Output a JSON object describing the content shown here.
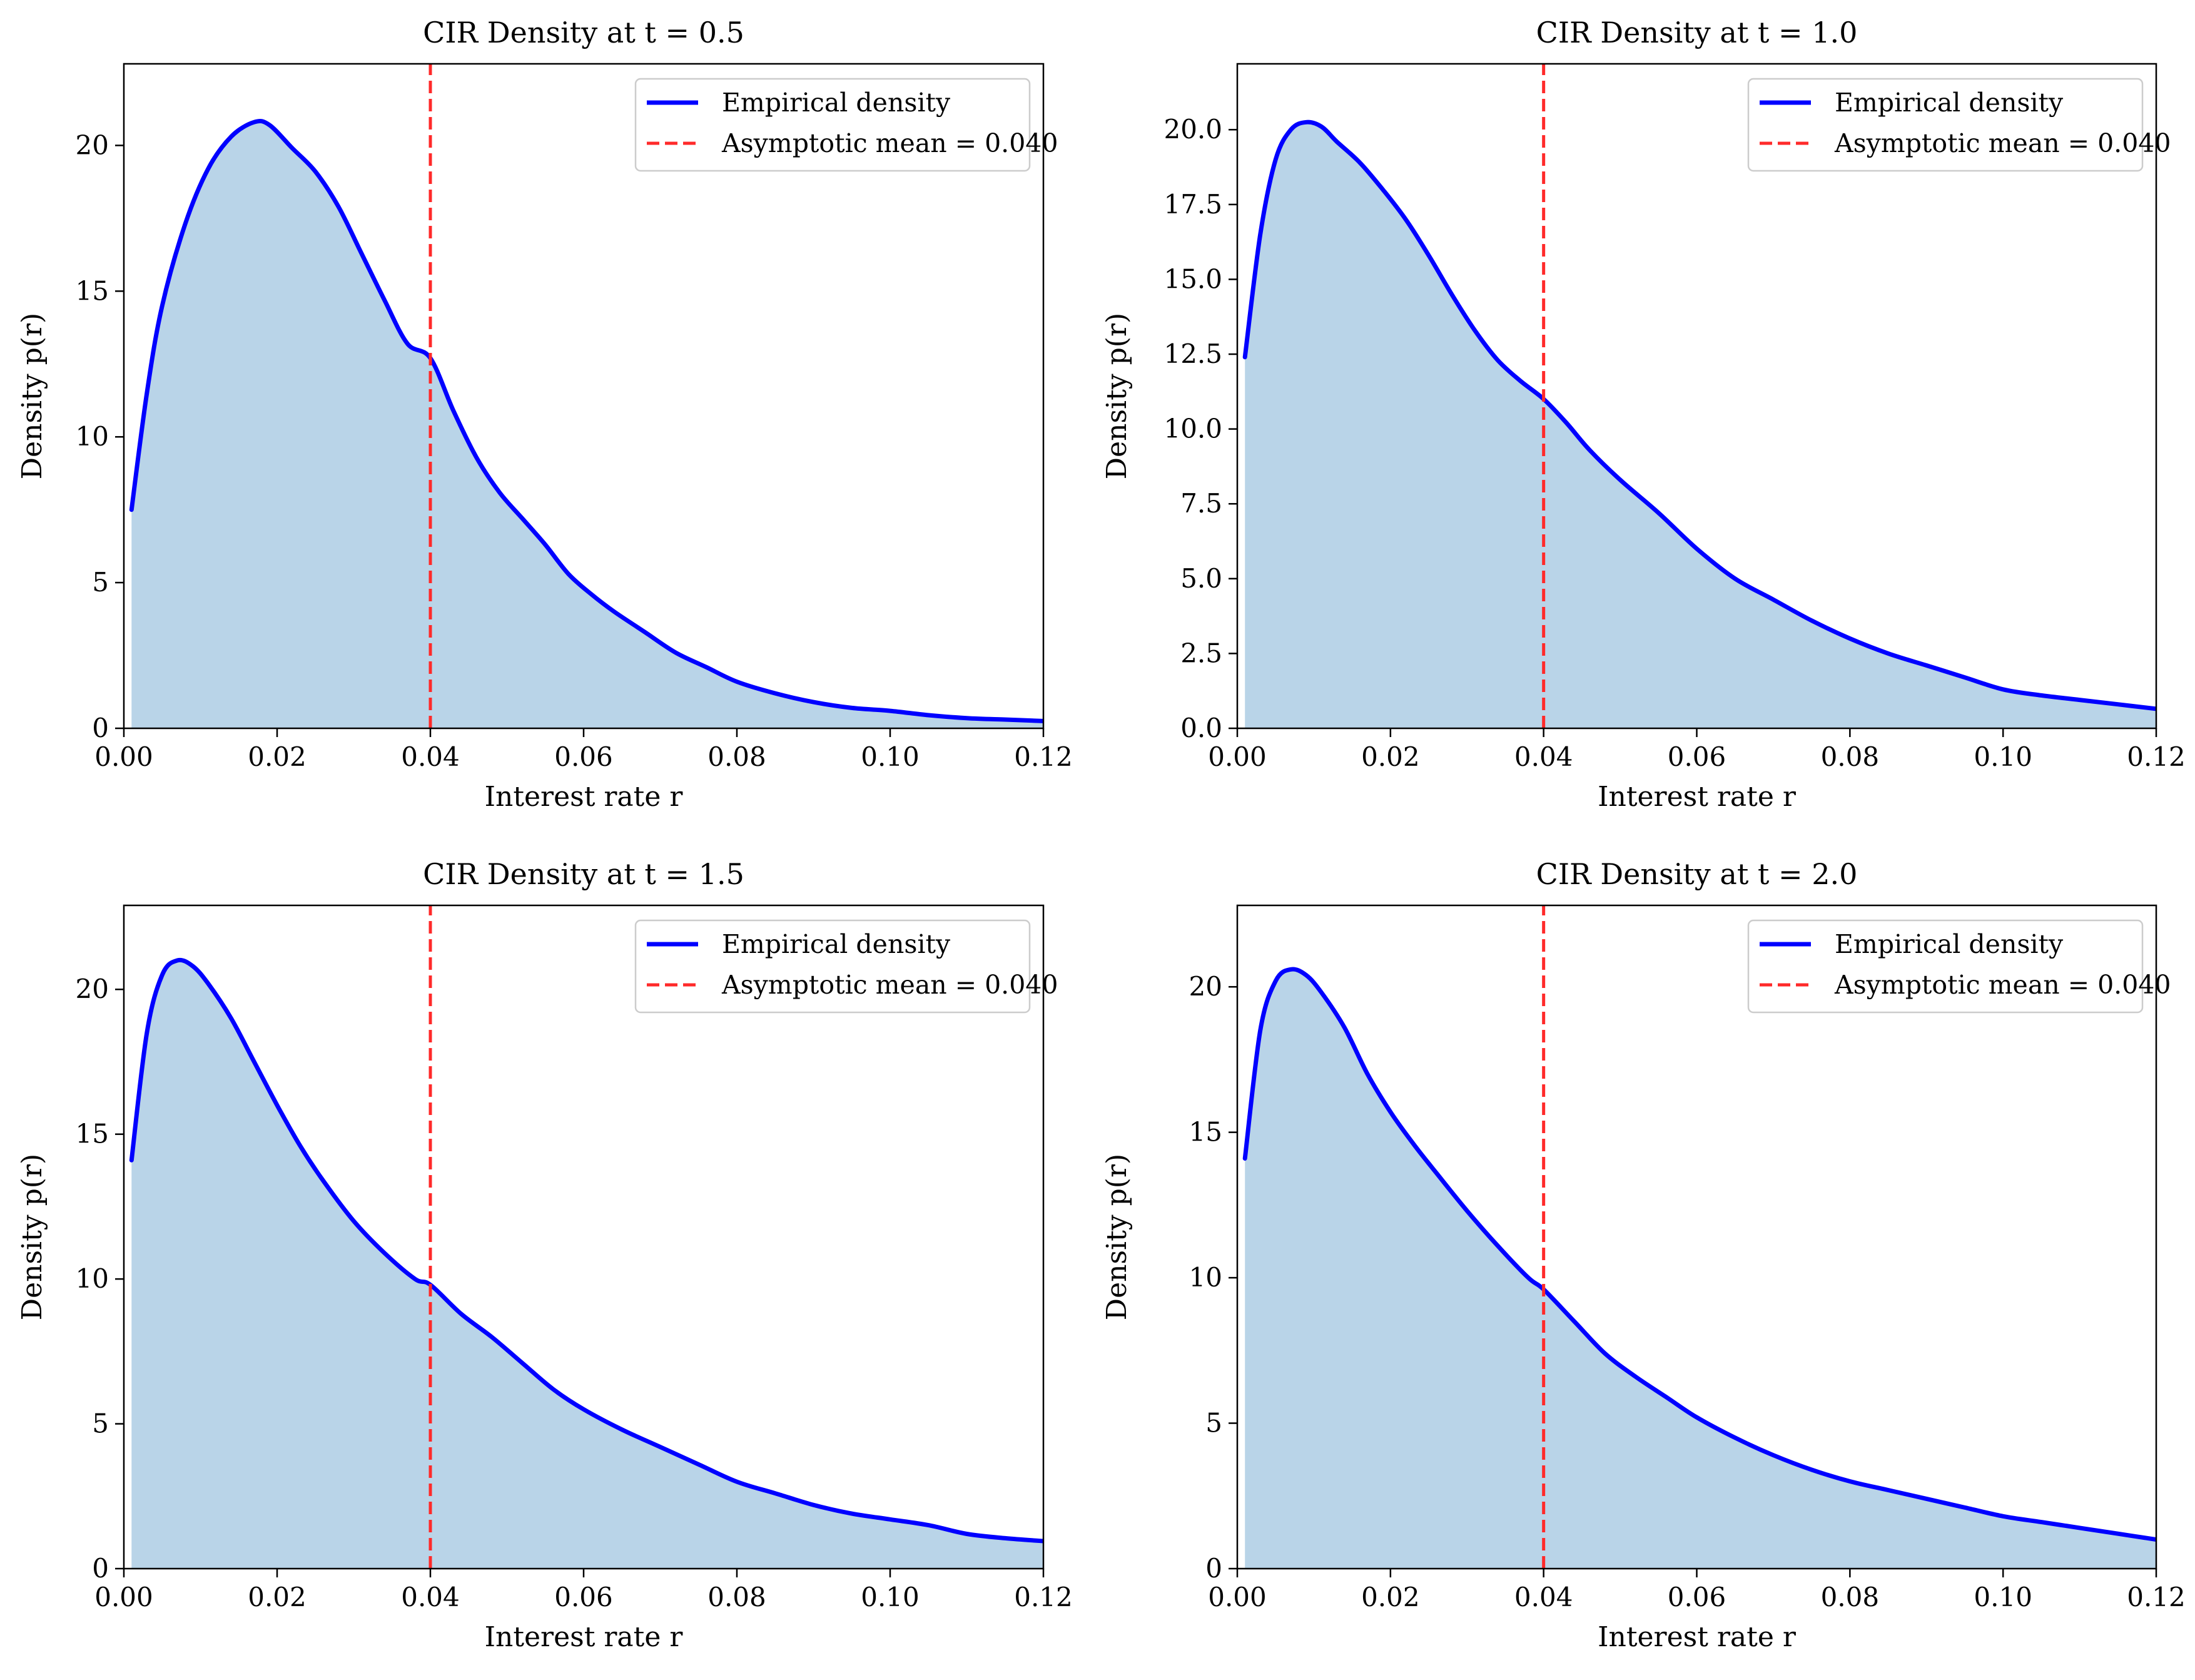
{
  "chart_data": [
    {
      "type": "area",
      "title": "CIR Density at t = 0.5",
      "xlabel": "Interest rate r",
      "ylabel": "Density p(r)",
      "xlim": [
        0.0,
        0.12
      ],
      "ylim": [
        0,
        22.8
      ],
      "xticks": [
        0.0,
        0.02,
        0.04,
        0.06,
        0.08,
        0.1,
        0.12
      ],
      "xtick_labels": [
        "0.00",
        "0.02",
        "0.04",
        "0.06",
        "0.08",
        "0.10",
        "0.12"
      ],
      "yticks": [
        0,
        5,
        10,
        15,
        20
      ],
      "ytick_labels": [
        "0",
        "5",
        "10",
        "15",
        "20"
      ],
      "legend_position": "top-right",
      "grid": false,
      "series": [
        {
          "name": "Empirical density",
          "color": "#0000ff",
          "fill_color": "#b9d4e8",
          "x": [
            0.001,
            0.003,
            0.005,
            0.008,
            0.011,
            0.014,
            0.017,
            0.019,
            0.022,
            0.025,
            0.028,
            0.031,
            0.034,
            0.037,
            0.04,
            0.043,
            0.046,
            0.049,
            0.052,
            0.055,
            0.058,
            0.061,
            0.064,
            0.068,
            0.072,
            0.076,
            0.08,
            0.085,
            0.09,
            0.095,
            0.1,
            0.105,
            0.11,
            0.115,
            0.12
          ],
          "y": [
            7.5,
            11.5,
            14.5,
            17.3,
            19.2,
            20.3,
            20.8,
            20.7,
            19.9,
            19.1,
            17.9,
            16.3,
            14.7,
            13.2,
            12.7,
            10.9,
            9.3,
            8.1,
            7.2,
            6.3,
            5.3,
            4.6,
            4.0,
            3.3,
            2.6,
            2.1,
            1.6,
            1.2,
            0.9,
            0.7,
            0.6,
            0.45,
            0.35,
            0.3,
            0.25
          ]
        },
        {
          "name": "Asymptotic mean = 0.040",
          "color": "#ff2a2a",
          "line_style": "dashed",
          "x": [
            0.04,
            0.04
          ],
          "y": [
            0,
            22.8
          ]
        }
      ]
    },
    {
      "type": "area",
      "title": "CIR Density at t = 1.0",
      "xlabel": "Interest rate r",
      "ylabel": "Density p(r)",
      "xlim": [
        0.0,
        0.12
      ],
      "ylim": [
        0,
        22.2
      ],
      "xticks": [
        0.0,
        0.02,
        0.04,
        0.06,
        0.08,
        0.1,
        0.12
      ],
      "xtick_labels": [
        "0.00",
        "0.02",
        "0.04",
        "0.06",
        "0.08",
        "0.10",
        "0.12"
      ],
      "yticks": [
        0,
        2.5,
        5,
        7.5,
        10,
        12.5,
        15,
        17.5,
        20
      ],
      "ytick_labels": [
        "0.0",
        "2.5",
        "5.0",
        "7.5",
        "10.0",
        "12.5",
        "15.0",
        "17.5",
        "20.0"
      ],
      "legend_position": "top-right",
      "grid": false,
      "series": [
        {
          "name": "Empirical density",
          "color": "#0000ff",
          "fill_color": "#b9d4e8",
          "x": [
            0.001,
            0.003,
            0.005,
            0.007,
            0.009,
            0.011,
            0.013,
            0.016,
            0.019,
            0.022,
            0.025,
            0.028,
            0.031,
            0.034,
            0.037,
            0.04,
            0.043,
            0.046,
            0.05,
            0.055,
            0.06,
            0.065,
            0.07,
            0.075,
            0.08,
            0.085,
            0.09,
            0.095,
            0.1,
            0.105,
            0.11,
            0.115,
            0.12
          ],
          "y": [
            12.4,
            16.5,
            19.0,
            20.0,
            20.25,
            20.1,
            19.6,
            18.9,
            18.0,
            17.0,
            15.8,
            14.5,
            13.3,
            12.3,
            11.6,
            11.0,
            10.2,
            9.3,
            8.3,
            7.2,
            6.0,
            5.0,
            4.3,
            3.6,
            3.0,
            2.5,
            2.1,
            1.7,
            1.3,
            1.1,
            0.95,
            0.8,
            0.65
          ]
        },
        {
          "name": "Asymptotic mean = 0.040",
          "color": "#ff2a2a",
          "line_style": "dashed",
          "x": [
            0.04,
            0.04
          ],
          "y": [
            0,
            22.2
          ]
        }
      ]
    },
    {
      "type": "area",
      "title": "CIR Density at t = 1.5",
      "xlabel": "Interest rate r",
      "ylabel": "Density p(r)",
      "xlim": [
        0.0,
        0.12
      ],
      "ylim": [
        0,
        22.9
      ],
      "xticks": [
        0.0,
        0.02,
        0.04,
        0.06,
        0.08,
        0.1,
        0.12
      ],
      "xtick_labels": [
        "0.00",
        "0.02",
        "0.04",
        "0.06",
        "0.08",
        "0.10",
        "0.12"
      ],
      "yticks": [
        0,
        5,
        10,
        15,
        20
      ],
      "ytick_labels": [
        "0",
        "5",
        "10",
        "15",
        "20"
      ],
      "legend_position": "top-right",
      "grid": false,
      "series": [
        {
          "name": "Empirical density",
          "color": "#0000ff",
          "fill_color": "#b9d4e8",
          "x": [
            0.001,
            0.003,
            0.005,
            0.007,
            0.009,
            0.011,
            0.014,
            0.017,
            0.02,
            0.023,
            0.026,
            0.03,
            0.034,
            0.038,
            0.04,
            0.044,
            0.048,
            0.052,
            0.056,
            0.06,
            0.065,
            0.07,
            0.075,
            0.08,
            0.085,
            0.09,
            0.095,
            0.1,
            0.105,
            0.11,
            0.115,
            0.12
          ],
          "y": [
            14.1,
            18.5,
            20.5,
            21.0,
            20.8,
            20.2,
            19.0,
            17.5,
            16.0,
            14.6,
            13.4,
            12.0,
            10.9,
            10.0,
            9.8,
            8.8,
            8.0,
            7.1,
            6.2,
            5.5,
            4.8,
            4.2,
            3.6,
            3.0,
            2.6,
            2.2,
            1.9,
            1.7,
            1.5,
            1.2,
            1.05,
            0.95
          ]
        },
        {
          "name": "Asymptotic mean = 0.040",
          "color": "#ff2a2a",
          "line_style": "dashed",
          "x": [
            0.04,
            0.04
          ],
          "y": [
            0,
            22.9
          ]
        }
      ]
    },
    {
      "type": "area",
      "title": "CIR Density at t = 2.0",
      "xlabel": "Interest rate r",
      "ylabel": "Density p(r)",
      "xlim": [
        0.0,
        0.12
      ],
      "ylim": [
        0,
        22.8
      ],
      "xticks": [
        0.0,
        0.02,
        0.04,
        0.06,
        0.08,
        0.1,
        0.12
      ],
      "xtick_labels": [
        "0.00",
        "0.02",
        "0.04",
        "0.06",
        "0.08",
        "0.10",
        "0.12"
      ],
      "yticks": [
        0,
        5,
        10,
        15,
        20
      ],
      "ytick_labels": [
        "0",
        "5",
        "10",
        "15",
        "20"
      ],
      "legend_position": "top-right",
      "grid": false,
      "series": [
        {
          "name": "Empirical density",
          "color": "#0000ff",
          "fill_color": "#b9d4e8",
          "x": [
            0.001,
            0.003,
            0.005,
            0.007,
            0.009,
            0.011,
            0.014,
            0.017,
            0.02,
            0.023,
            0.026,
            0.03,
            0.034,
            0.038,
            0.04,
            0.044,
            0.048,
            0.052,
            0.056,
            0.06,
            0.065,
            0.07,
            0.075,
            0.08,
            0.085,
            0.09,
            0.095,
            0.1,
            0.105,
            0.11,
            0.115,
            0.12
          ],
          "y": [
            14.1,
            18.5,
            20.2,
            20.6,
            20.4,
            19.8,
            18.6,
            17.0,
            15.7,
            14.6,
            13.6,
            12.3,
            11.1,
            10.0,
            9.6,
            8.5,
            7.4,
            6.6,
            5.9,
            5.2,
            4.5,
            3.9,
            3.4,
            3.0,
            2.7,
            2.4,
            2.1,
            1.8,
            1.6,
            1.4,
            1.2,
            1.0
          ]
        },
        {
          "name": "Asymptotic mean = 0.040",
          "color": "#ff2a2a",
          "line_style": "dashed",
          "x": [
            0.04,
            0.04
          ],
          "y": [
            0,
            22.8
          ]
        }
      ]
    }
  ]
}
